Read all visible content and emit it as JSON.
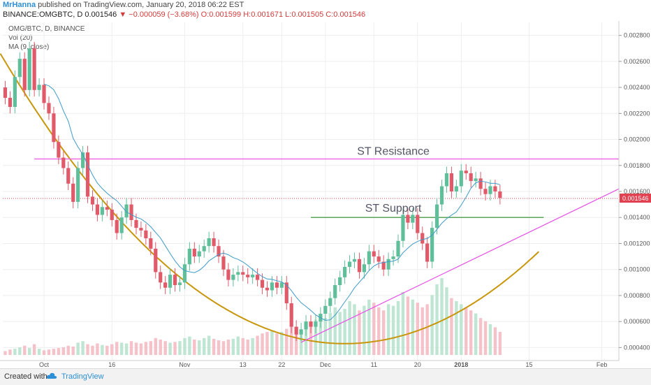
{
  "header": {
    "user": "MrHanna",
    "published": "published on TradingView.com, January 20, 2018 06:22 EST",
    "symbol": "BINANCE:OMGBTC, D",
    "last": "0.001546",
    "change": "−0.000059 (−3.68%)",
    "open": "O:0.001599",
    "high": "H:0.001671",
    "low": "L:0.001505",
    "close": "C:0.001546"
  },
  "legend": {
    "title": "OMG/BTC, D, BINANCE",
    "vol": "Vol (20)",
    "ma": "MA (9, close)"
  },
  "footer": {
    "created": "Created with",
    "brand": "TradingView"
  },
  "colors": {
    "up": "#5fbf9a",
    "down": "#e05a6a",
    "ma": "#3d9bc9",
    "resistance": "#ee6be4",
    "support": "#5aa55a",
    "curve": "#c8960a",
    "trendline": "#e550e6",
    "last_price": "#e04050"
  },
  "chart_data": {
    "type": "candlestick",
    "y_axis": {
      "min": 0.0003,
      "max": 0.0029,
      "ticks": [
        0.0004,
        0.0006,
        0.0008,
        0.001,
        0.0012,
        0.0014,
        0.0016,
        0.0018,
        0.002,
        0.0022,
        0.0024,
        0.0026,
        0.0028
      ],
      "tick_labels": [
        "0.000400",
        "0.000600",
        "0.000800",
        "0.001000",
        "0.001200",
        "0.001400",
        "0.001600",
        "0.001800",
        "0.002000",
        "0.002200",
        "0.002400",
        "0.002600",
        "0.002800"
      ]
    },
    "x_axis": {
      "labels": [
        "Oct",
        "16",
        "Nov",
        "13",
        "22",
        "Dec",
        "11",
        "20",
        "2018",
        "15",
        "Feb"
      ],
      "label_index": [
        8,
        22,
        37,
        49,
        57,
        66,
        76,
        85,
        94,
        108,
        123
      ]
    },
    "last_price_label": "0.001546",
    "annotations": [
      {
        "label": "ST Resistance",
        "price": 0.00185
      },
      {
        "label": "ST Support",
        "price": 0.0014
      }
    ],
    "close": [
      0.00232,
      0.00225,
      0.00248,
      0.00262,
      0.00238,
      0.0027,
      0.00238,
      0.00242,
      0.00228,
      0.0022,
      0.00198,
      0.00186,
      0.00178,
      0.00166,
      0.00152,
      0.00178,
      0.0019,
      0.00156,
      0.0015,
      0.00142,
      0.00148,
      0.00146,
      0.00138,
      0.00128,
      0.0014,
      0.0015,
      0.00138,
      0.00132,
      0.0013,
      0.00124,
      0.00116,
      0.00098,
      0.0009,
      0.00086,
      0.00096,
      0.00088,
      0.0009,
      0.00104,
      0.00116,
      0.0011,
      0.00114,
      0.00118,
      0.00124,
      0.00118,
      0.0011,
      0.001,
      0.00092,
      0.00096,
      0.00098,
      0.00096,
      0.00094,
      0.00096,
      0.00092,
      0.00086,
      0.00084,
      0.0009,
      0.00086,
      0.0009,
      0.00074,
      0.00056,
      0.0005,
      0.00054,
      0.0006,
      0.00056,
      0.0006,
      0.00066,
      0.00072,
      0.00078,
      0.00088,
      0.00094,
      0.00102,
      0.00106,
      0.00108,
      0.00098,
      0.00104,
      0.00114,
      0.0011,
      0.00106,
      0.001,
      0.00108,
      0.0011,
      0.00122,
      0.00142,
      0.00136,
      0.00142,
      0.00128,
      0.0012,
      0.00106,
      0.00132,
      0.0015,
      0.00164,
      0.00174,
      0.0016,
      0.00164,
      0.00176,
      0.00174,
      0.00168,
      0.0017,
      0.00162,
      0.00158,
      0.00164,
      0.0016,
      0.00155
    ],
    "open": [
      0.0024,
      0.00232,
      0.00225,
      0.00248,
      0.00262,
      0.00238,
      0.0027,
      0.00238,
      0.00242,
      0.00228,
      0.0022,
      0.00198,
      0.00186,
      0.00178,
      0.00166,
      0.00152,
      0.00178,
      0.0019,
      0.00156,
      0.0015,
      0.00142,
      0.00148,
      0.00146,
      0.00138,
      0.00128,
      0.0014,
      0.0015,
      0.00138,
      0.00132,
      0.0013,
      0.00124,
      0.00116,
      0.00098,
      0.0009,
      0.00086,
      0.00096,
      0.00088,
      0.0009,
      0.00104,
      0.00116,
      0.0011,
      0.00114,
      0.00118,
      0.00124,
      0.00118,
      0.0011,
      0.001,
      0.00092,
      0.00096,
      0.00098,
      0.00096,
      0.00094,
      0.00096,
      0.00092,
      0.00086,
      0.00084,
      0.0009,
      0.00086,
      0.0009,
      0.00074,
      0.00056,
      0.0005,
      0.00054,
      0.0006,
      0.00056,
      0.0006,
      0.00066,
      0.00072,
      0.00078,
      0.00088,
      0.00094,
      0.00102,
      0.00106,
      0.00108,
      0.00098,
      0.00104,
      0.00114,
      0.0011,
      0.00106,
      0.001,
      0.00108,
      0.0011,
      0.00122,
      0.00142,
      0.00136,
      0.00142,
      0.00128,
      0.0012,
      0.00106,
      0.00132,
      0.0015,
      0.00164,
      0.00174,
      0.0016,
      0.00164,
      0.00176,
      0.00174,
      0.00168,
      0.0017,
      0.00162,
      0.00158,
      0.00164,
      0.0016
    ],
    "volume": [
      0.05,
      0.07,
      0.08,
      0.1,
      0.12,
      0.09,
      0.14,
      0.08,
      0.06,
      0.07,
      0.08,
      0.09,
      0.1,
      0.12,
      0.11,
      0.16,
      0.18,
      0.14,
      0.12,
      0.15,
      0.13,
      0.12,
      0.14,
      0.17,
      0.16,
      0.15,
      0.18,
      0.16,
      0.15,
      0.17,
      0.18,
      0.22,
      0.2,
      0.18,
      0.16,
      0.17,
      0.18,
      0.22,
      0.24,
      0.2,
      0.19,
      0.22,
      0.25,
      0.21,
      0.19,
      0.18,
      0.2,
      0.21,
      0.24,
      0.22,
      0.2,
      0.22,
      0.25,
      0.28,
      0.3,
      0.32,
      0.28,
      0.3,
      0.34,
      0.4,
      0.36,
      0.32,
      0.38,
      0.42,
      0.46,
      0.52,
      0.48,
      0.55,
      0.62,
      0.56,
      0.6,
      0.7,
      0.66,
      0.58,
      0.64,
      0.72,
      0.68,
      0.62,
      0.58,
      0.66,
      0.64,
      0.7,
      0.82,
      0.76,
      0.72,
      0.68,
      0.62,
      0.66,
      0.78,
      0.92,
      1.0,
      0.88,
      0.74,
      0.7,
      0.66,
      0.62,
      0.58,
      0.54,
      0.48,
      0.44,
      0.4,
      0.36,
      0.3
    ]
  }
}
